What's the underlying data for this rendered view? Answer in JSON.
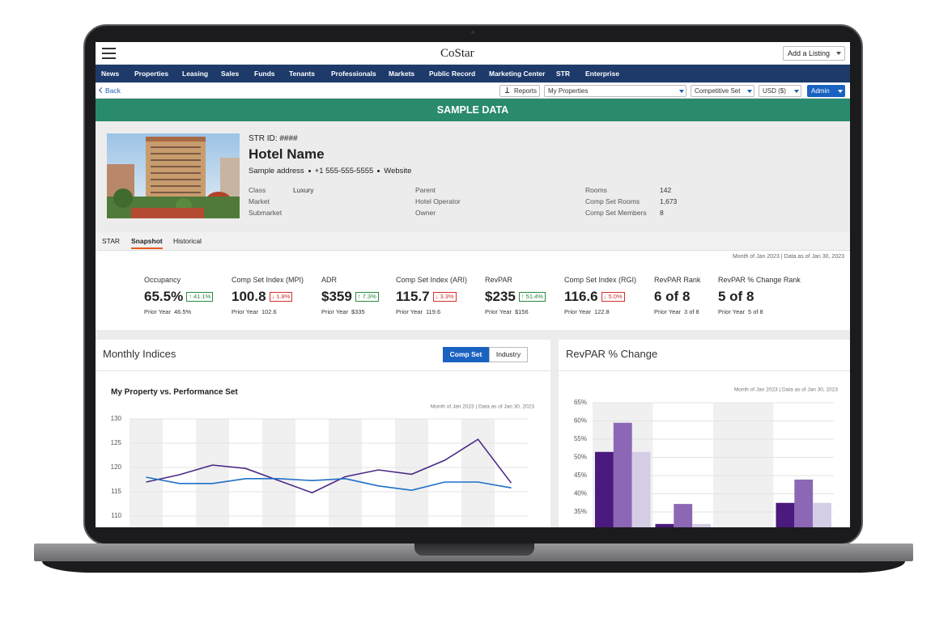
{
  "header": {
    "brand": "CoStar",
    "add_listing": "Add a Listing"
  },
  "nav": [
    "News",
    "Properties",
    "Leasing",
    "Sales",
    "Funds",
    "Tenants",
    "Professionals",
    "Markets",
    "Public Record",
    "Marketing Center",
    "STR",
    "Enterprise"
  ],
  "toolbar": {
    "back": "Back",
    "reports": "Reports",
    "property_set": "My Properties",
    "comp_set": "Competitive Set",
    "currency": "USD ($)",
    "user": "Admin"
  },
  "banner": "SAMPLE DATA",
  "property": {
    "str_id": "STR ID: ####",
    "name": "Hotel Name",
    "address": "Sample address",
    "phone": "+1 555-555-5555",
    "website": "Website",
    "details": [
      [
        {
          "label": "Class",
          "value": "Luxury"
        },
        {
          "label": "Market"
        },
        {
          "label": "Submarket"
        }
      ],
      [
        {
          "label": "Parent"
        },
        {
          "label": "Hotel Operator"
        },
        {
          "label": "Owner"
        }
      ],
      [
        {
          "label": "Rooms",
          "value": "142"
        },
        {
          "label": "Comp Set Rooms",
          "value": "1,673"
        },
        {
          "label": "Comp Set Members",
          "value": "8"
        }
      ]
    ]
  },
  "tabs": {
    "items": [
      "STAR",
      "Snapshot",
      "Historical"
    ],
    "active": 1
  },
  "snapshot": {
    "note": "Month of Jan 2023 | Data as of Jan 30, 2023",
    "kpis": [
      {
        "label": "Occupancy",
        "value": "65.5%",
        "change": "↑ 41.1%",
        "trend": "up",
        "prior": {
          "label": "Prior Year",
          "value": "46.5%"
        }
      },
      {
        "label": "Comp Set Index (MPI)",
        "value": "100.8",
        "change": "↓ 1.8%",
        "trend": "down",
        "prior": {
          "label": "Prior Year",
          "value": "102.6"
        }
      },
      {
        "label": "ADR",
        "value": "$359",
        "change": "↑ 7.3%",
        "trend": "up",
        "prior": {
          "label": "Prior Year",
          "value": "$335"
        }
      },
      {
        "label": "Comp Set Index (ARI)",
        "value": "115.7",
        "change": "↓ 3.3%",
        "trend": "down",
        "prior": {
          "label": "Prior Year",
          "value": "119.6"
        }
      },
      {
        "label": "RevPAR",
        "value": "$235",
        "change": "↑ 51.4%",
        "trend": "up",
        "prior": {
          "label": "Prior Year",
          "value": "$156"
        }
      },
      {
        "label": "Comp Set Index (RGI)",
        "value": "116.6",
        "change": "↓ 5.0%",
        "trend": "down",
        "prior": {
          "label": "Prior Year",
          "value": "122.8"
        }
      },
      {
        "label": "RevPAR Rank",
        "value": "6 of 8",
        "prior": {
          "label": "Prior Year",
          "value": "3 of 8"
        }
      },
      {
        "label": "RevPAR % Change Rank",
        "value": "5 of 8",
        "prior": {
          "label": "Prior Year",
          "value": "5 of 8"
        }
      }
    ]
  },
  "panels": [
    {
      "title": "Monthly Indices",
      "toggle": [
        "Comp Set",
        "Industry"
      ],
      "active": 0
    },
    {
      "title": "RevPAR % Change"
    }
  ],
  "chart_data": [
    {
      "type": "line",
      "title": "My Property vs. Performance Set",
      "subtitle": "Month of Jan 2023 | Data as of Jan 30, 2023",
      "categories": [
        null,
        null,
        null,
        null,
        null,
        null,
        null,
        null,
        null,
        null,
        null,
        null
      ],
      "series": [
        {
          "color": "#4b2a85",
          "values": [
            117,
            118.5,
            120.5,
            119.8,
            117.3,
            114.8,
            118.1,
            119.5,
            118.6,
            121.5,
            125.8,
            116.8
          ]
        },
        {
          "color": "#1f6fc8",
          "values": [
            118,
            116.7,
            116.7,
            117.7,
            117.7,
            117.3,
            117.7,
            116.2,
            115.3,
            117,
            117,
            115.8
          ]
        }
      ],
      "ylim": [
        105,
        130
      ],
      "yticks": [
        110,
        115,
        120,
        125,
        130
      ],
      "grid": true
    },
    {
      "type": "bar",
      "subtitle": "Month of Jan 2023 | Data as of Jan 30, 2023",
      "categories": [
        null,
        null,
        null,
        null
      ],
      "series": [
        {
          "color": "#4a1a7e",
          "values": [
            51.5,
            31.7,
            null,
            37.5
          ]
        },
        {
          "color": "#8b67b5",
          "values": [
            59.5,
            37.2,
            null,
            43.9
          ]
        },
        {
          "color": "#d5cce6",
          "values": [
            51.5,
            31.7,
            null,
            37.5
          ]
        }
      ],
      "ylim": [
        30,
        65
      ],
      "yticks": [
        {
          "value": 35,
          "label": "35%"
        },
        {
          "value": 40,
          "label": "40%"
        },
        {
          "value": 45,
          "label": "45%"
        },
        {
          "value": 50,
          "label": "50%"
        },
        {
          "value": 55,
          "label": "55%"
        },
        {
          "value": 60,
          "label": "60%"
        },
        {
          "value": 65,
          "label": "65%"
        }
      ],
      "grid": true
    }
  ]
}
